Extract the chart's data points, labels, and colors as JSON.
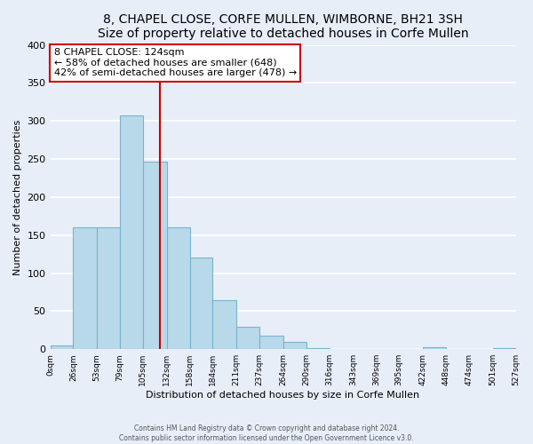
{
  "title": "8, CHAPEL CLOSE, CORFE MULLEN, WIMBORNE, BH21 3SH",
  "subtitle": "Size of property relative to detached houses in Corfe Mullen",
  "xlabel": "Distribution of detached houses by size in Corfe Mullen",
  "ylabel": "Number of detached properties",
  "bin_edges": [
    0,
    26,
    53,
    79,
    105,
    132,
    158,
    184,
    211,
    237,
    264,
    290,
    316,
    343,
    369,
    395,
    422,
    448,
    474,
    501,
    527
  ],
  "bar_heights": [
    5,
    160,
    160,
    307,
    247,
    160,
    121,
    64,
    30,
    18,
    9,
    1,
    0,
    0,
    0,
    0,
    2,
    0,
    0,
    1
  ],
  "bar_color": "#b8d9ea",
  "bar_edge_color": "#7ab3cc",
  "property_size": 124,
  "property_line_color": "#cc0000",
  "annotation_line1": "8 CHAPEL CLOSE: 124sqm",
  "annotation_line2": "← 58% of detached houses are smaller (648)",
  "annotation_line3": "42% of semi-detached houses are larger (478) →",
  "annotation_box_color": "white",
  "annotation_box_edge_color": "#cc0000",
  "xlim": [
    0,
    527
  ],
  "ylim": [
    0,
    400
  ],
  "yticks": [
    0,
    50,
    100,
    150,
    200,
    250,
    300,
    350,
    400
  ],
  "xtick_labels": [
    "0sqm",
    "26sqm",
    "53sqm",
    "79sqm",
    "105sqm",
    "132sqm",
    "158sqm",
    "184sqm",
    "211sqm",
    "237sqm",
    "264sqm",
    "290sqm",
    "316sqm",
    "343sqm",
    "369sqm",
    "395sqm",
    "422sqm",
    "448sqm",
    "474sqm",
    "501sqm",
    "527sqm"
  ],
  "footer1": "Contains HM Land Registry data © Crown copyright and database right 2024.",
  "footer2": "Contains public sector information licensed under the Open Government Licence v3.0.",
  "background_color": "#e8eef8",
  "grid_color": "white",
  "title_fontsize": 10,
  "subtitle_fontsize": 9
}
